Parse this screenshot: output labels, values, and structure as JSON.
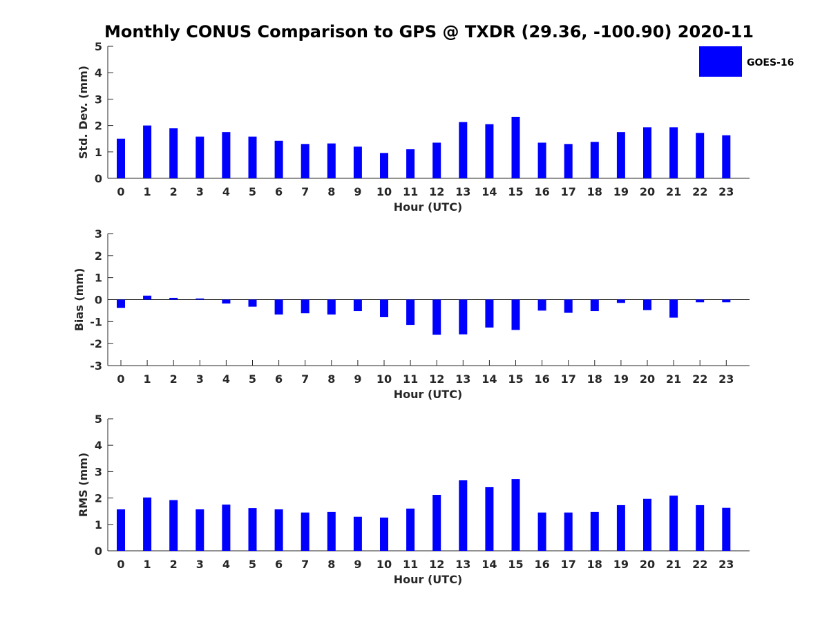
{
  "title": "Monthly CONUS Comparison to GPS @ TXDR (29.36, -100.90) 2020-11",
  "legend": {
    "label": "GOES-16",
    "color": "#0000ff"
  },
  "chart_data": [
    {
      "type": "bar",
      "name": "std-dev",
      "xlabel": "Hour (UTC)",
      "ylabel": "Std. Dev. (mm)",
      "ylim": [
        0,
        5
      ],
      "yticks": [
        "0",
        "1",
        "2",
        "3",
        "4",
        "5"
      ],
      "categories": [
        "0",
        "1",
        "2",
        "3",
        "4",
        "5",
        "6",
        "7",
        "8",
        "9",
        "10",
        "11",
        "12",
        "13",
        "14",
        "15",
        "16",
        "17",
        "18",
        "19",
        "20",
        "21",
        "22",
        "23"
      ],
      "series": [
        {
          "name": "GOES-16",
          "color": "#0000ff",
          "values": [
            1.5,
            2.0,
            1.9,
            1.58,
            1.75,
            1.58,
            1.42,
            1.3,
            1.32,
            1.2,
            0.96,
            1.1,
            1.35,
            2.13,
            2.05,
            2.33,
            1.35,
            1.3,
            1.38,
            1.75,
            1.93,
            1.93,
            1.72,
            1.63
          ]
        }
      ]
    },
    {
      "type": "bar",
      "name": "bias",
      "xlabel": "Hour (UTC)",
      "ylabel": "Bias (mm)",
      "ylim": [
        -3,
        3
      ],
      "yticks": [
        "-3",
        "-2",
        "-1",
        "0",
        "1",
        "2",
        "3"
      ],
      "categories": [
        "0",
        "1",
        "2",
        "3",
        "4",
        "5",
        "6",
        "7",
        "8",
        "9",
        "10",
        "11",
        "12",
        "13",
        "14",
        "15",
        "16",
        "17",
        "18",
        "19",
        "20",
        "21",
        "22",
        "23"
      ],
      "series": [
        {
          "name": "GOES-16",
          "color": "#0000ff",
          "values": [
            -0.38,
            0.18,
            0.08,
            0.05,
            -0.18,
            -0.32,
            -0.68,
            -0.62,
            -0.68,
            -0.52,
            -0.8,
            -1.15,
            -1.6,
            -1.58,
            -1.27,
            -1.38,
            -0.5,
            -0.6,
            -0.52,
            -0.15,
            -0.48,
            -0.82,
            -0.12,
            -0.12
          ]
        }
      ]
    },
    {
      "type": "bar",
      "name": "rms",
      "xlabel": "Hour (UTC)",
      "ylabel": "RMS (mm)",
      "ylim": [
        0,
        5
      ],
      "yticks": [
        "0",
        "1",
        "2",
        "3",
        "4",
        "5"
      ],
      "categories": [
        "0",
        "1",
        "2",
        "3",
        "4",
        "5",
        "6",
        "7",
        "8",
        "9",
        "10",
        "11",
        "12",
        "13",
        "14",
        "15",
        "16",
        "17",
        "18",
        "19",
        "20",
        "21",
        "22",
        "23"
      ],
      "series": [
        {
          "name": "GOES-16",
          "color": "#0000ff",
          "values": [
            1.57,
            2.02,
            1.92,
            1.57,
            1.75,
            1.62,
            1.57,
            1.45,
            1.47,
            1.29,
            1.26,
            1.6,
            2.12,
            2.67,
            2.41,
            2.72,
            1.45,
            1.45,
            1.47,
            1.73,
            1.97,
            2.09,
            1.73,
            1.63
          ]
        }
      ]
    }
  ]
}
